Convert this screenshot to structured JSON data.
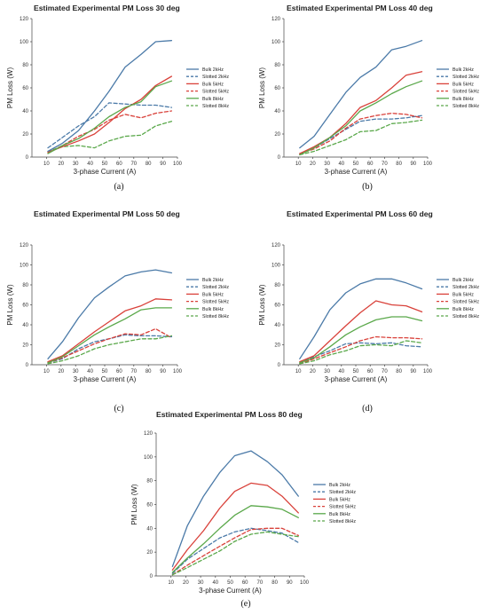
{
  "colors": {
    "bulk_2khz": "#4b7aa8",
    "slotted_2khz": "#4b7aa8",
    "bulk_5khz": "#d9413a",
    "slotted_5khz": "#d9413a",
    "bulk_8khz": "#5aa84a",
    "slotted_8khz": "#5aa84a",
    "overlap": "#8f6b3a"
  },
  "chart_data": [
    {
      "type": "line",
      "title": "Estimated Experimental PM Loss 30 deg",
      "caption": "(a)",
      "xlabel": "3-phase Current (A)",
      "ylabel": "PM Loss (W)",
      "xlim": [
        0,
        100
      ],
      "ylim": [
        0,
        120
      ],
      "xticks": [
        10,
        20,
        30,
        40,
        50,
        60,
        70,
        80,
        90,
        100
      ],
      "yticks": [
        0,
        20,
        40,
        60,
        80,
        100,
        120
      ],
      "legend_position": "right",
      "series": [
        {
          "name": "Bulk 2kHz",
          "style": "solid",
          "color": "#4b7aa8",
          "x": [
            11,
            21,
            32,
            43,
            53,
            64,
            75,
            85,
            96
          ],
          "y": [
            5,
            12,
            23,
            40,
            57,
            78,
            89,
            100,
            101
          ]
        },
        {
          "name": "Slotted 2kHz",
          "style": "dashed",
          "color": "#4b7aa8",
          "x": [
            11,
            21,
            32,
            43,
            53,
            64,
            75,
            85,
            96
          ],
          "y": [
            8,
            17,
            27,
            35,
            47,
            46,
            45,
            45,
            43
          ]
        },
        {
          "name": "Bulk 5kHz",
          "style": "solid",
          "color": "#d9413a",
          "x": [
            11,
            21,
            32,
            43,
            53,
            64,
            75,
            85,
            96
          ],
          "y": [
            4,
            9,
            14,
            20,
            30,
            42,
            50,
            62,
            70
          ]
        },
        {
          "name": "Slotted 5kHz",
          "style": "dashed",
          "color": "#d9413a",
          "x": [
            11,
            21,
            32,
            43,
            53,
            64,
            75,
            85,
            96
          ],
          "y": [
            4,
            10,
            18,
            24,
            32,
            37,
            34,
            38,
            40
          ]
        },
        {
          "name": "Bulk 8kHz",
          "style": "solid",
          "color": "#5aa84a",
          "x": [
            11,
            21,
            32,
            43,
            53,
            64,
            75,
            85,
            96
          ],
          "y": [
            3,
            10,
            16,
            25,
            35,
            43,
            48,
            61,
            66
          ]
        },
        {
          "name": "Slotted 8kHz",
          "style": "dashed",
          "color": "#5aa84a",
          "x": [
            11,
            21,
            32,
            43,
            53,
            64,
            75,
            85,
            96
          ],
          "y": [
            5,
            9,
            10,
            8,
            14,
            18,
            19,
            27,
            31
          ]
        }
      ]
    },
    {
      "type": "line",
      "title": "Estimated Experimental PM Loss 40 deg",
      "caption": "(b)",
      "xlabel": "3-phase Current (A)",
      "ylabel": "PM Loss (W)",
      "xlim": [
        0,
        100
      ],
      "ylim": [
        0,
        120
      ],
      "xticks": [
        10,
        20,
        30,
        40,
        50,
        60,
        70,
        80,
        90,
        100
      ],
      "yticks": [
        0,
        20,
        40,
        60,
        80,
        100,
        120
      ],
      "legend_position": "right",
      "series": [
        {
          "name": "Bulk 2kHz",
          "style": "solid",
          "color": "#4b7aa8",
          "x": [
            11,
            21,
            32,
            43,
            53,
            64,
            75,
            85,
            96
          ],
          "y": [
            8,
            18,
            37,
            56,
            69,
            78,
            93,
            96,
            101
          ]
        },
        {
          "name": "Slotted 2kHz",
          "style": "dashed",
          "color": "#4b7aa8",
          "x": [
            11,
            21,
            32,
            43,
            53,
            64,
            75,
            85,
            96
          ],
          "y": [
            3,
            8,
            16,
            24,
            31,
            33,
            33,
            34,
            36
          ]
        },
        {
          "name": "Bulk 5kHz",
          "style": "solid",
          "color": "#d9413a",
          "x": [
            11,
            21,
            32,
            43,
            53,
            64,
            75,
            85,
            96
          ],
          "y": [
            3,
            9,
            17,
            29,
            43,
            49,
            60,
            71,
            74
          ]
        },
        {
          "name": "Slotted 5kHz",
          "style": "dashed",
          "color": "#d9413a",
          "x": [
            11,
            21,
            32,
            43,
            53,
            64,
            75,
            85,
            96
          ],
          "y": [
            3,
            7,
            14,
            25,
            33,
            36,
            38,
            37,
            34
          ]
        },
        {
          "name": "Bulk 8kHz",
          "style": "solid",
          "color": "#5aa84a",
          "x": [
            11,
            21,
            32,
            43,
            53,
            64,
            75,
            85,
            96
          ],
          "y": [
            2,
            8,
            17,
            27,
            40,
            47,
            55,
            61,
            66
          ]
        },
        {
          "name": "Slotted 8kHz",
          "style": "dashed",
          "color": "#5aa84a",
          "x": [
            11,
            21,
            32,
            43,
            53,
            64,
            75,
            85,
            96
          ],
          "y": [
            2,
            5,
            10,
            15,
            22,
            23,
            29,
            30,
            32
          ]
        }
      ]
    },
    {
      "type": "line",
      "title": "Estimated Experimental PM Loss 50 deg",
      "caption": "(c)",
      "xlabel": "3-phase Current (A)",
      "ylabel": "PM Loss (W)",
      "xlim": [
        0,
        100
      ],
      "ylim": [
        0,
        120
      ],
      "xticks": [
        10,
        20,
        30,
        40,
        50,
        60,
        70,
        80,
        90,
        100
      ],
      "yticks": [
        0,
        20,
        40,
        60,
        80,
        100,
        120
      ],
      "legend_position": "right",
      "series": [
        {
          "name": "Bulk 2kHz",
          "style": "solid",
          "color": "#4b7aa8",
          "x": [
            11,
            21,
            32,
            43,
            53,
            64,
            75,
            85,
            96
          ],
          "y": [
            6,
            23,
            47,
            67,
            78,
            89,
            93,
            95,
            92
          ]
        },
        {
          "name": "Slotted 2kHz",
          "style": "dashed",
          "color": "#4b7aa8",
          "x": [
            11,
            21,
            32,
            43,
            53,
            64,
            75,
            85,
            96
          ],
          "y": [
            2,
            6,
            16,
            23,
            26,
            30,
            29,
            29,
            28
          ]
        },
        {
          "name": "Bulk 5kHz",
          "style": "solid",
          "color": "#d9413a",
          "x": [
            11,
            21,
            32,
            43,
            53,
            64,
            75,
            85,
            96
          ],
          "y": [
            3,
            9,
            21,
            33,
            43,
            54,
            59,
            66,
            65
          ]
        },
        {
          "name": "Slotted 5kHz",
          "style": "dashed",
          "color": "#d9413a",
          "x": [
            11,
            21,
            32,
            43,
            53,
            64,
            75,
            85,
            96
          ],
          "y": [
            2,
            7,
            14,
            21,
            26,
            31,
            30,
            36,
            27
          ]
        },
        {
          "name": "Bulk 8kHz",
          "style": "solid",
          "color": "#5aa84a",
          "x": [
            11,
            21,
            32,
            43,
            53,
            64,
            75,
            85,
            96
          ],
          "y": [
            2,
            8,
            19,
            30,
            38,
            46,
            55,
            57,
            57
          ]
        },
        {
          "name": "Slotted 8kHz",
          "style": "dashed",
          "color": "#5aa84a",
          "x": [
            11,
            21,
            32,
            43,
            53,
            64,
            75,
            85,
            96
          ],
          "y": [
            1,
            4,
            9,
            16,
            20,
            23,
            26,
            26,
            29
          ]
        }
      ]
    },
    {
      "type": "line",
      "title": "Estimated Experimental PM Loss 60 deg",
      "caption": "(d)",
      "xlabel": "3-phase Current (A)",
      "ylabel": "PM Loss (W)",
      "xlim": [
        0,
        100
      ],
      "ylim": [
        0,
        120
      ],
      "xticks": [
        10,
        20,
        30,
        40,
        50,
        60,
        70,
        80,
        90,
        100
      ],
      "yticks": [
        0,
        20,
        40,
        60,
        80,
        100,
        120
      ],
      "legend_position": "right",
      "series": [
        {
          "name": "Bulk 2kHz",
          "style": "solid",
          "color": "#4b7aa8",
          "x": [
            11,
            21,
            32,
            43,
            53,
            64,
            75,
            85,
            96
          ],
          "y": [
            6,
            28,
            55,
            72,
            81,
            86,
            86,
            82,
            76
          ]
        },
        {
          "name": "Slotted 2kHz",
          "style": "dashed",
          "color": "#4b7aa8",
          "x": [
            11,
            21,
            32,
            43,
            53,
            64,
            75,
            85,
            96
          ],
          "y": [
            2,
            8,
            14,
            21,
            22,
            21,
            22,
            19,
            18
          ]
        },
        {
          "name": "Bulk 5kHz",
          "style": "solid",
          "color": "#d9413a",
          "x": [
            11,
            21,
            32,
            43,
            53,
            64,
            75,
            85,
            96
          ],
          "y": [
            3,
            9,
            24,
            39,
            52,
            64,
            60,
            59,
            53
          ]
        },
        {
          "name": "Slotted 5kHz",
          "style": "dashed",
          "color": "#d9413a",
          "x": [
            11,
            21,
            32,
            43,
            53,
            64,
            75,
            85,
            96
          ],
          "y": [
            1,
            6,
            12,
            18,
            24,
            28,
            27,
            27,
            26
          ]
        },
        {
          "name": "Bulk 8kHz",
          "style": "solid",
          "color": "#5aa84a",
          "x": [
            11,
            21,
            32,
            43,
            53,
            64,
            75,
            85,
            96
          ],
          "y": [
            2,
            7,
            18,
            30,
            38,
            45,
            48,
            48,
            44
          ]
        },
        {
          "name": "Slotted 8kHz",
          "style": "dashed",
          "color": "#5aa84a",
          "x": [
            11,
            21,
            32,
            43,
            53,
            64,
            75,
            85,
            96
          ],
          "y": [
            1,
            4,
            10,
            14,
            19,
            20,
            19,
            24,
            22
          ]
        }
      ]
    },
    {
      "type": "line",
      "title": "Estimated Experimental PM Loss 80 deg",
      "caption": "(e)",
      "xlabel": "3-phase Current (A)",
      "ylabel": "PM Loss (W)",
      "xlim": [
        0,
        100
      ],
      "ylim": [
        0,
        120
      ],
      "xticks": [
        10,
        20,
        30,
        40,
        50,
        60,
        70,
        80,
        90,
        100
      ],
      "yticks": [
        0,
        20,
        40,
        60,
        80,
        100,
        120
      ],
      "legend_position": "right",
      "series": [
        {
          "name": "Bulk 2kHz",
          "style": "solid",
          "color": "#4b7aa8",
          "x": [
            11,
            21,
            32,
            43,
            53,
            64,
            75,
            85,
            96
          ],
          "y": [
            8,
            42,
            67,
            87,
            101,
            105,
            96,
            85,
            67
          ]
        },
        {
          "name": "Slotted 2kHz",
          "style": "dashed",
          "color": "#4b7aa8",
          "x": [
            11,
            21,
            32,
            43,
            53,
            64,
            75,
            85,
            96
          ],
          "y": [
            2,
            14,
            23,
            32,
            37,
            40,
            38,
            36,
            28
          ]
        },
        {
          "name": "Bulk 5kHz",
          "style": "solid",
          "color": "#d9413a",
          "x": [
            11,
            21,
            32,
            43,
            53,
            64,
            75,
            85,
            96
          ],
          "y": [
            5,
            22,
            38,
            57,
            71,
            78,
            76,
            67,
            53
          ]
        },
        {
          "name": "Slotted 5kHz",
          "style": "dashed",
          "color": "#d9413a",
          "x": [
            11,
            21,
            32,
            43,
            53,
            64,
            75,
            85,
            96
          ],
          "y": [
            1,
            9,
            17,
            25,
            32,
            39,
            40,
            40,
            34
          ]
        },
        {
          "name": "Bulk 8kHz",
          "style": "solid",
          "color": "#5aa84a",
          "x": [
            11,
            21,
            32,
            43,
            53,
            64,
            75,
            85,
            96
          ],
          "y": [
            3,
            15,
            27,
            40,
            51,
            59,
            58,
            56,
            49
          ]
        },
        {
          "name": "Slotted 8kHz",
          "style": "dashed",
          "color": "#5aa84a",
          "x": [
            11,
            21,
            32,
            43,
            53,
            64,
            75,
            85,
            96
          ],
          "y": [
            1,
            7,
            14,
            21,
            29,
            35,
            37,
            35,
            33
          ]
        }
      ]
    }
  ]
}
